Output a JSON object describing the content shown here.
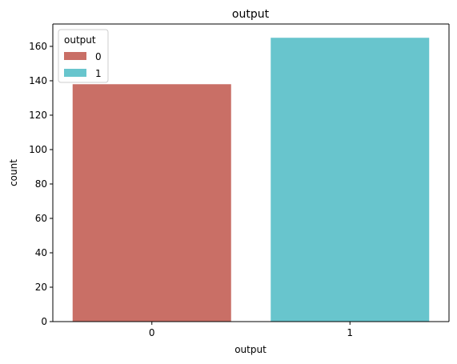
{
  "chart_data": {
    "type": "bar",
    "title": "output",
    "xlabel": "output",
    "ylabel": "count",
    "categories": [
      "0",
      "1"
    ],
    "values": [
      138,
      165
    ],
    "colors": [
      "#c96f66",
      "#68c5cd"
    ],
    "ylim": [
      0,
      173
    ],
    "yticks": [
      0,
      20,
      40,
      60,
      80,
      100,
      120,
      140,
      160
    ],
    "grid": false,
    "legend": {
      "title": "output",
      "placement": "top-left",
      "entries": [
        {
          "label": "0",
          "color": "#c96f66"
        },
        {
          "label": "1",
          "color": "#68c5cd"
        }
      ]
    }
  }
}
